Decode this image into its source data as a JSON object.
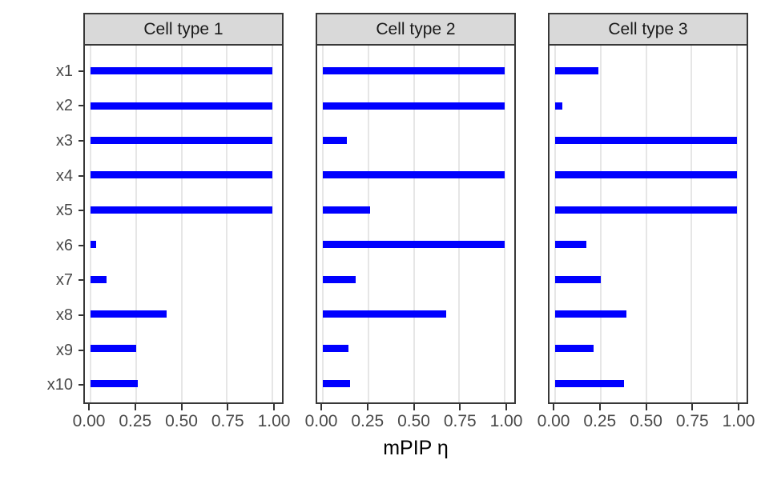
{
  "chart_data": {
    "type": "bar",
    "orientation": "horizontal",
    "layout": "3 facet panels sharing y axis",
    "categories": [
      "x1",
      "x2",
      "x3",
      "x4",
      "x5",
      "x6",
      "x7",
      "x8",
      "x9",
      "x10"
    ],
    "series": [
      {
        "name": "Cell type 1",
        "values": [
          1.0,
          1.0,
          1.0,
          1.0,
          1.0,
          0.03,
          0.09,
          0.42,
          0.25,
          0.26
        ]
      },
      {
        "name": "Cell type 2",
        "values": [
          1.0,
          1.0,
          0.13,
          1.0,
          0.26,
          1.0,
          0.18,
          0.68,
          0.14,
          0.15
        ]
      },
      {
        "name": "Cell type 3",
        "values": [
          0.24,
          0.04,
          1.0,
          1.0,
          1.0,
          0.17,
          0.25,
          0.39,
          0.21,
          0.38
        ]
      }
    ],
    "xlabel": "mPIP η",
    "ylabel": "",
    "xlim": [
      0,
      1
    ],
    "x_tick_values": [
      0,
      0.25,
      0.5,
      0.75,
      1
    ],
    "x_tick_labels": [
      "0.00",
      "0.25",
      "0.50",
      "0.75",
      "1.00"
    ],
    "grid": "major vertical gridlines only",
    "legend": "none",
    "bar_color": "#0000ff",
    "theme": {
      "strip_background": "#d9d9d9",
      "strip_text_color": "#1a1a1a",
      "panel_border_color": "#383838",
      "grid_color": "#e6e6e6",
      "tick_color": "#333333",
      "axis_text_color": "#4a4a4a",
      "axis_title_color": "#000000",
      "background": "#ffffff"
    }
  }
}
